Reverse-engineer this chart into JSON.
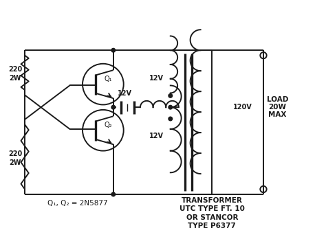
{
  "bg_color": "#ffffff",
  "line_color": "#1a1a1a",
  "figsize": [
    4.74,
    3.32
  ],
  "dpi": 100,
  "labels": {
    "r1": [
      "220",
      "2W"
    ],
    "r2": [
      "220",
      "2W"
    ],
    "q1": "Q₁",
    "q2": "Q₂",
    "v12_battery": "12V",
    "v12_top": "12V",
    "v12_bot": "12V",
    "v120": "120V",
    "load": [
      "LOAD",
      "20W",
      "MAX"
    ],
    "transistors": "Q₁, Q₂ = 2N5877",
    "transformer": [
      "TRANSFORMER",
      "UTC TYPE FT. 10",
      "OR STANCOR",
      "TYPE P6377"
    ]
  }
}
